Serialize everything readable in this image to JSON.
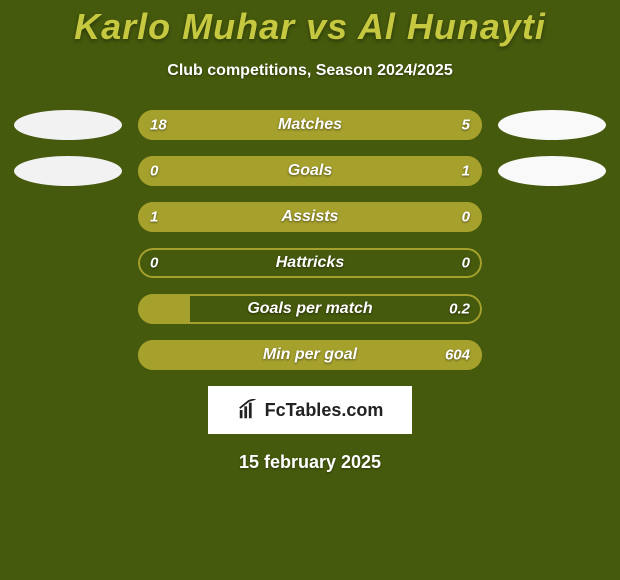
{
  "background_color": "#465a0d",
  "title": {
    "text": "Karlo Muhar vs Al Hunayti",
    "color": "#c6c940",
    "fontsize": 36
  },
  "subtitle": {
    "text": "Club competitions, Season 2024/2025",
    "color": "#ffffff",
    "fontsize": 16
  },
  "bar_style": {
    "border_color": "#a6a12d",
    "fill_color": "#a6a12d",
    "track_color": "transparent",
    "height": 30,
    "radius": 16
  },
  "oval_left_color": "#f2f2f2",
  "oval_right_color": "#f9f9f9",
  "rows": [
    {
      "label": "Matches",
      "left_val": "18",
      "right_val": "5",
      "left_pct": 75,
      "right_pct": 25,
      "show_ovals": true
    },
    {
      "label": "Goals",
      "left_val": "0",
      "right_val": "1",
      "left_pct": 15,
      "right_pct": 85,
      "show_ovals": true
    },
    {
      "label": "Assists",
      "left_val": "1",
      "right_val": "0",
      "left_pct": 100,
      "right_pct": 0,
      "show_ovals": false
    },
    {
      "label": "Hattricks",
      "left_val": "0",
      "right_val": "0",
      "left_pct": 0,
      "right_pct": 0,
      "show_ovals": false
    },
    {
      "label": "Goals per match",
      "left_val": "",
      "right_val": "0.2",
      "left_pct": 15,
      "right_pct": 0,
      "show_ovals": false
    },
    {
      "label": "Min per goal",
      "left_val": "",
      "right_val": "604",
      "left_pct": 100,
      "right_pct": 0,
      "show_ovals": false
    }
  ],
  "badge": {
    "text": "FcTables.com"
  },
  "date": {
    "text": "15 february 2025",
    "color": "#ffffff",
    "fontsize": 18
  }
}
